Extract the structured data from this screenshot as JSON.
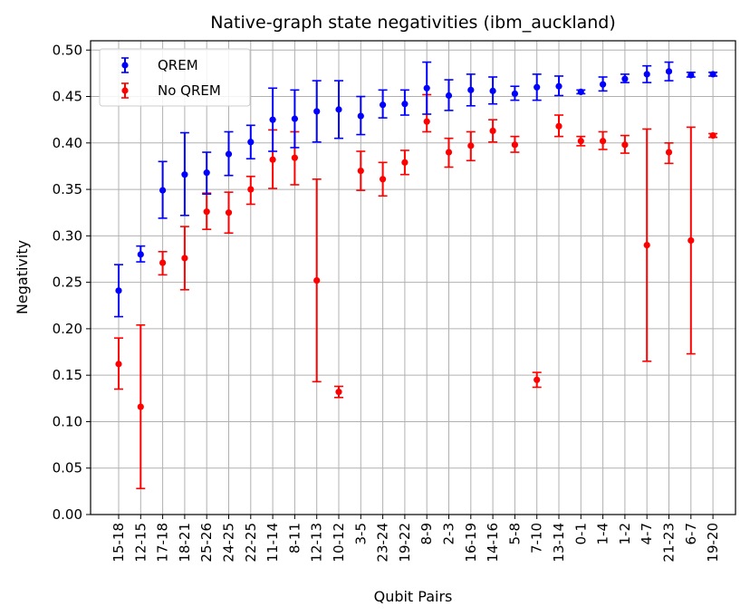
{
  "chart_data": {
    "type": "scatter",
    "title": "Native-graph state negativities (ibm_auckland)",
    "xlabel": "Qubit Pairs",
    "ylabel": "Negativity",
    "ylim": [
      0,
      0.51
    ],
    "yticks": [
      0.0,
      0.05,
      0.1,
      0.15,
      0.2,
      0.25,
      0.3,
      0.35,
      0.4,
      0.45,
      0.5
    ],
    "ytick_labels": [
      "0.00",
      "0.05",
      "0.10",
      "0.15",
      "0.20",
      "0.25",
      "0.30",
      "0.35",
      "0.40",
      "0.45",
      "0.50"
    ],
    "grid": true,
    "legend_position": "top-left",
    "categories": [
      "15-18",
      "12-15",
      "17-18",
      "18-21",
      "25-26",
      "24-25",
      "22-25",
      "11-14",
      "8-11",
      "12-13",
      "10-12",
      "3-5",
      "23-24",
      "19-22",
      "8-9",
      "2-3",
      "16-19",
      "14-16",
      "5-8",
      "7-10",
      "13-14",
      "0-1",
      "1-4",
      "1-2",
      "4-7",
      "21-23",
      "6-7",
      "19-20"
    ],
    "series": [
      {
        "name": "QREM",
        "color": "#0000ff",
        "values": [
          0.241,
          0.28,
          0.349,
          0.366,
          0.368,
          0.388,
          0.401,
          0.425,
          0.426,
          0.434,
          0.436,
          0.429,
          0.441,
          0.442,
          0.459,
          0.451,
          0.457,
          0.456,
          0.453,
          0.46,
          0.461,
          0.455,
          0.463,
          0.469,
          0.474,
          0.477,
          0.473,
          0.474
        ],
        "lower": [
          0.213,
          0.272,
          0.319,
          0.322,
          0.345,
          0.365,
          0.383,
          0.391,
          0.395,
          0.401,
          0.405,
          0.409,
          0.427,
          0.43,
          0.431,
          0.435,
          0.44,
          0.442,
          0.446,
          0.446,
          0.451,
          0.453,
          0.456,
          0.465,
          0.465,
          0.467,
          0.471,
          0.472
        ],
        "upper": [
          0.269,
          0.289,
          0.38,
          0.411,
          0.39,
          0.412,
          0.419,
          0.459,
          0.457,
          0.467,
          0.467,
          0.45,
          0.457,
          0.457,
          0.487,
          0.468,
          0.474,
          0.471,
          0.461,
          0.474,
          0.472,
          0.457,
          0.471,
          0.474,
          0.483,
          0.487,
          0.476,
          0.476
        ]
      },
      {
        "name": "No QREM",
        "color": "#ff0000",
        "values": [
          0.162,
          0.116,
          0.271,
          0.276,
          0.326,
          0.325,
          0.35,
          0.382,
          0.384,
          0.252,
          0.132,
          0.37,
          0.361,
          0.379,
          0.423,
          0.39,
          0.397,
          0.413,
          0.398,
          0.145,
          0.418,
          0.402,
          0.402,
          0.398,
          0.29,
          0.39,
          0.295,
          0.408
        ],
        "lower": [
          0.135,
          0.028,
          0.258,
          0.242,
          0.307,
          0.303,
          0.334,
          0.351,
          0.355,
          0.143,
          0.126,
          0.349,
          0.343,
          0.366,
          0.412,
          0.374,
          0.381,
          0.401,
          0.39,
          0.137,
          0.407,
          0.397,
          0.393,
          0.389,
          0.165,
          0.378,
          0.173,
          0.406
        ],
        "upper": [
          0.19,
          0.204,
          0.283,
          0.31,
          0.346,
          0.347,
          0.364,
          0.414,
          0.412,
          0.361,
          0.138,
          0.391,
          0.379,
          0.392,
          0.452,
          0.405,
          0.412,
          0.425,
          0.407,
          0.153,
          0.43,
          0.407,
          0.412,
          0.408,
          0.415,
          0.4,
          0.417,
          0.41
        ]
      }
    ]
  }
}
